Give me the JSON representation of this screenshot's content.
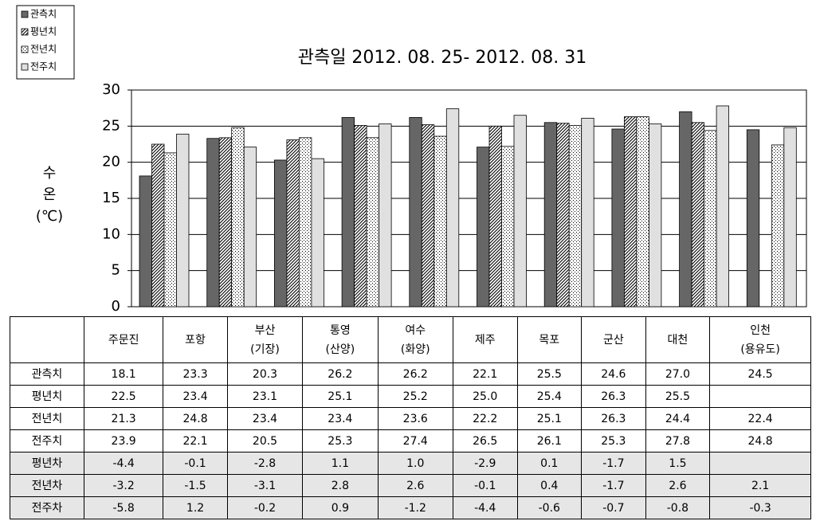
{
  "chart_data": {
    "type": "bar",
    "title": "관측일 2012. 08. 25- 2012. 08. 31",
    "y_label_lines": [
      "수",
      "온",
      "(℃)"
    ],
    "categories": [
      "주문진",
      "포항",
      "부산\n(기장)",
      "통영\n(산양)",
      "여수\n(화양)",
      "제주",
      "목포",
      "군산",
      "대천",
      "인천\n(용유도)"
    ],
    "ylim": [
      0,
      30
    ],
    "yticks": [
      0,
      5,
      10,
      15,
      20,
      25,
      30
    ],
    "grid": true,
    "series": [
      {
        "name": "관측치",
        "color": "#666666",
        "pattern": "solid",
        "values": [
          18.1,
          23.3,
          20.3,
          26.2,
          26.2,
          22.1,
          25.5,
          24.6,
          27.0,
          24.5
        ],
        "value_labels": [
          "18.1",
          "23.3",
          "20.3",
          "26.2",
          "26.2",
          "22.1",
          "25.5",
          "24.6",
          "27.0",
          "24.5"
        ]
      },
      {
        "name": "평년치",
        "color": "#ffffff",
        "pattern": "hatch",
        "values": [
          22.5,
          23.4,
          23.1,
          25.1,
          25.2,
          25.0,
          25.4,
          26.3,
          25.5,
          null
        ],
        "value_labels": [
          "22.5",
          "23.4",
          "23.1",
          "25.1",
          "25.2",
          "25.0",
          "25.4",
          "26.3",
          "25.5",
          null
        ]
      },
      {
        "name": "전년치",
        "color": "#ffffff",
        "pattern": "dots",
        "values": [
          21.3,
          24.8,
          23.4,
          23.4,
          23.6,
          22.2,
          25.1,
          26.3,
          24.4,
          22.4
        ],
        "value_labels": [
          "21.3",
          "24.8",
          "23.4",
          "23.4",
          "23.6",
          "22.2",
          "25.1",
          "26.3",
          "24.4",
          "22.4"
        ]
      },
      {
        "name": "전주치",
        "color": "#e0e0e0",
        "pattern": "solid",
        "values": [
          23.9,
          22.1,
          20.5,
          25.3,
          27.4,
          26.5,
          26.1,
          25.3,
          27.8,
          24.8
        ],
        "value_labels": [
          "23.9",
          "22.1",
          "20.5",
          "25.3",
          "27.4",
          "26.5",
          "26.1",
          "25.3",
          "27.8",
          "24.8"
        ]
      }
    ],
    "difference_rows": [
      {
        "name": "평년차",
        "values": [
          -4.4,
          -0.1,
          -2.8,
          1.1,
          1.0,
          -2.9,
          0.1,
          -1.7,
          1.5,
          null
        ],
        "value_labels": [
          "-4.4",
          "-0.1",
          "-2.8",
          "1.1",
          "1.0",
          "-2.9",
          "0.1",
          "-1.7",
          "1.5",
          null
        ]
      },
      {
        "name": "전년차",
        "values": [
          -3.2,
          -1.5,
          -3.1,
          2.8,
          2.6,
          -0.1,
          0.4,
          -1.7,
          2.6,
          2.1
        ],
        "value_labels": [
          "-3.2",
          "-1.5",
          "-3.1",
          "2.8",
          "2.6",
          "-0.1",
          "0.4",
          "-1.7",
          "2.6",
          "2.1"
        ]
      },
      {
        "name": "전주차",
        "values": [
          -5.8,
          1.2,
          -0.2,
          0.9,
          -1.2,
          -4.4,
          -0.6,
          -0.7,
          -0.8,
          -0.3
        ],
        "value_labels": [
          "-5.8",
          "1.2",
          "-0.2",
          "0.9",
          "-1.2",
          "-4.4",
          "-0.6",
          "-0.7",
          "-0.8",
          "-0.3"
        ]
      }
    ]
  }
}
